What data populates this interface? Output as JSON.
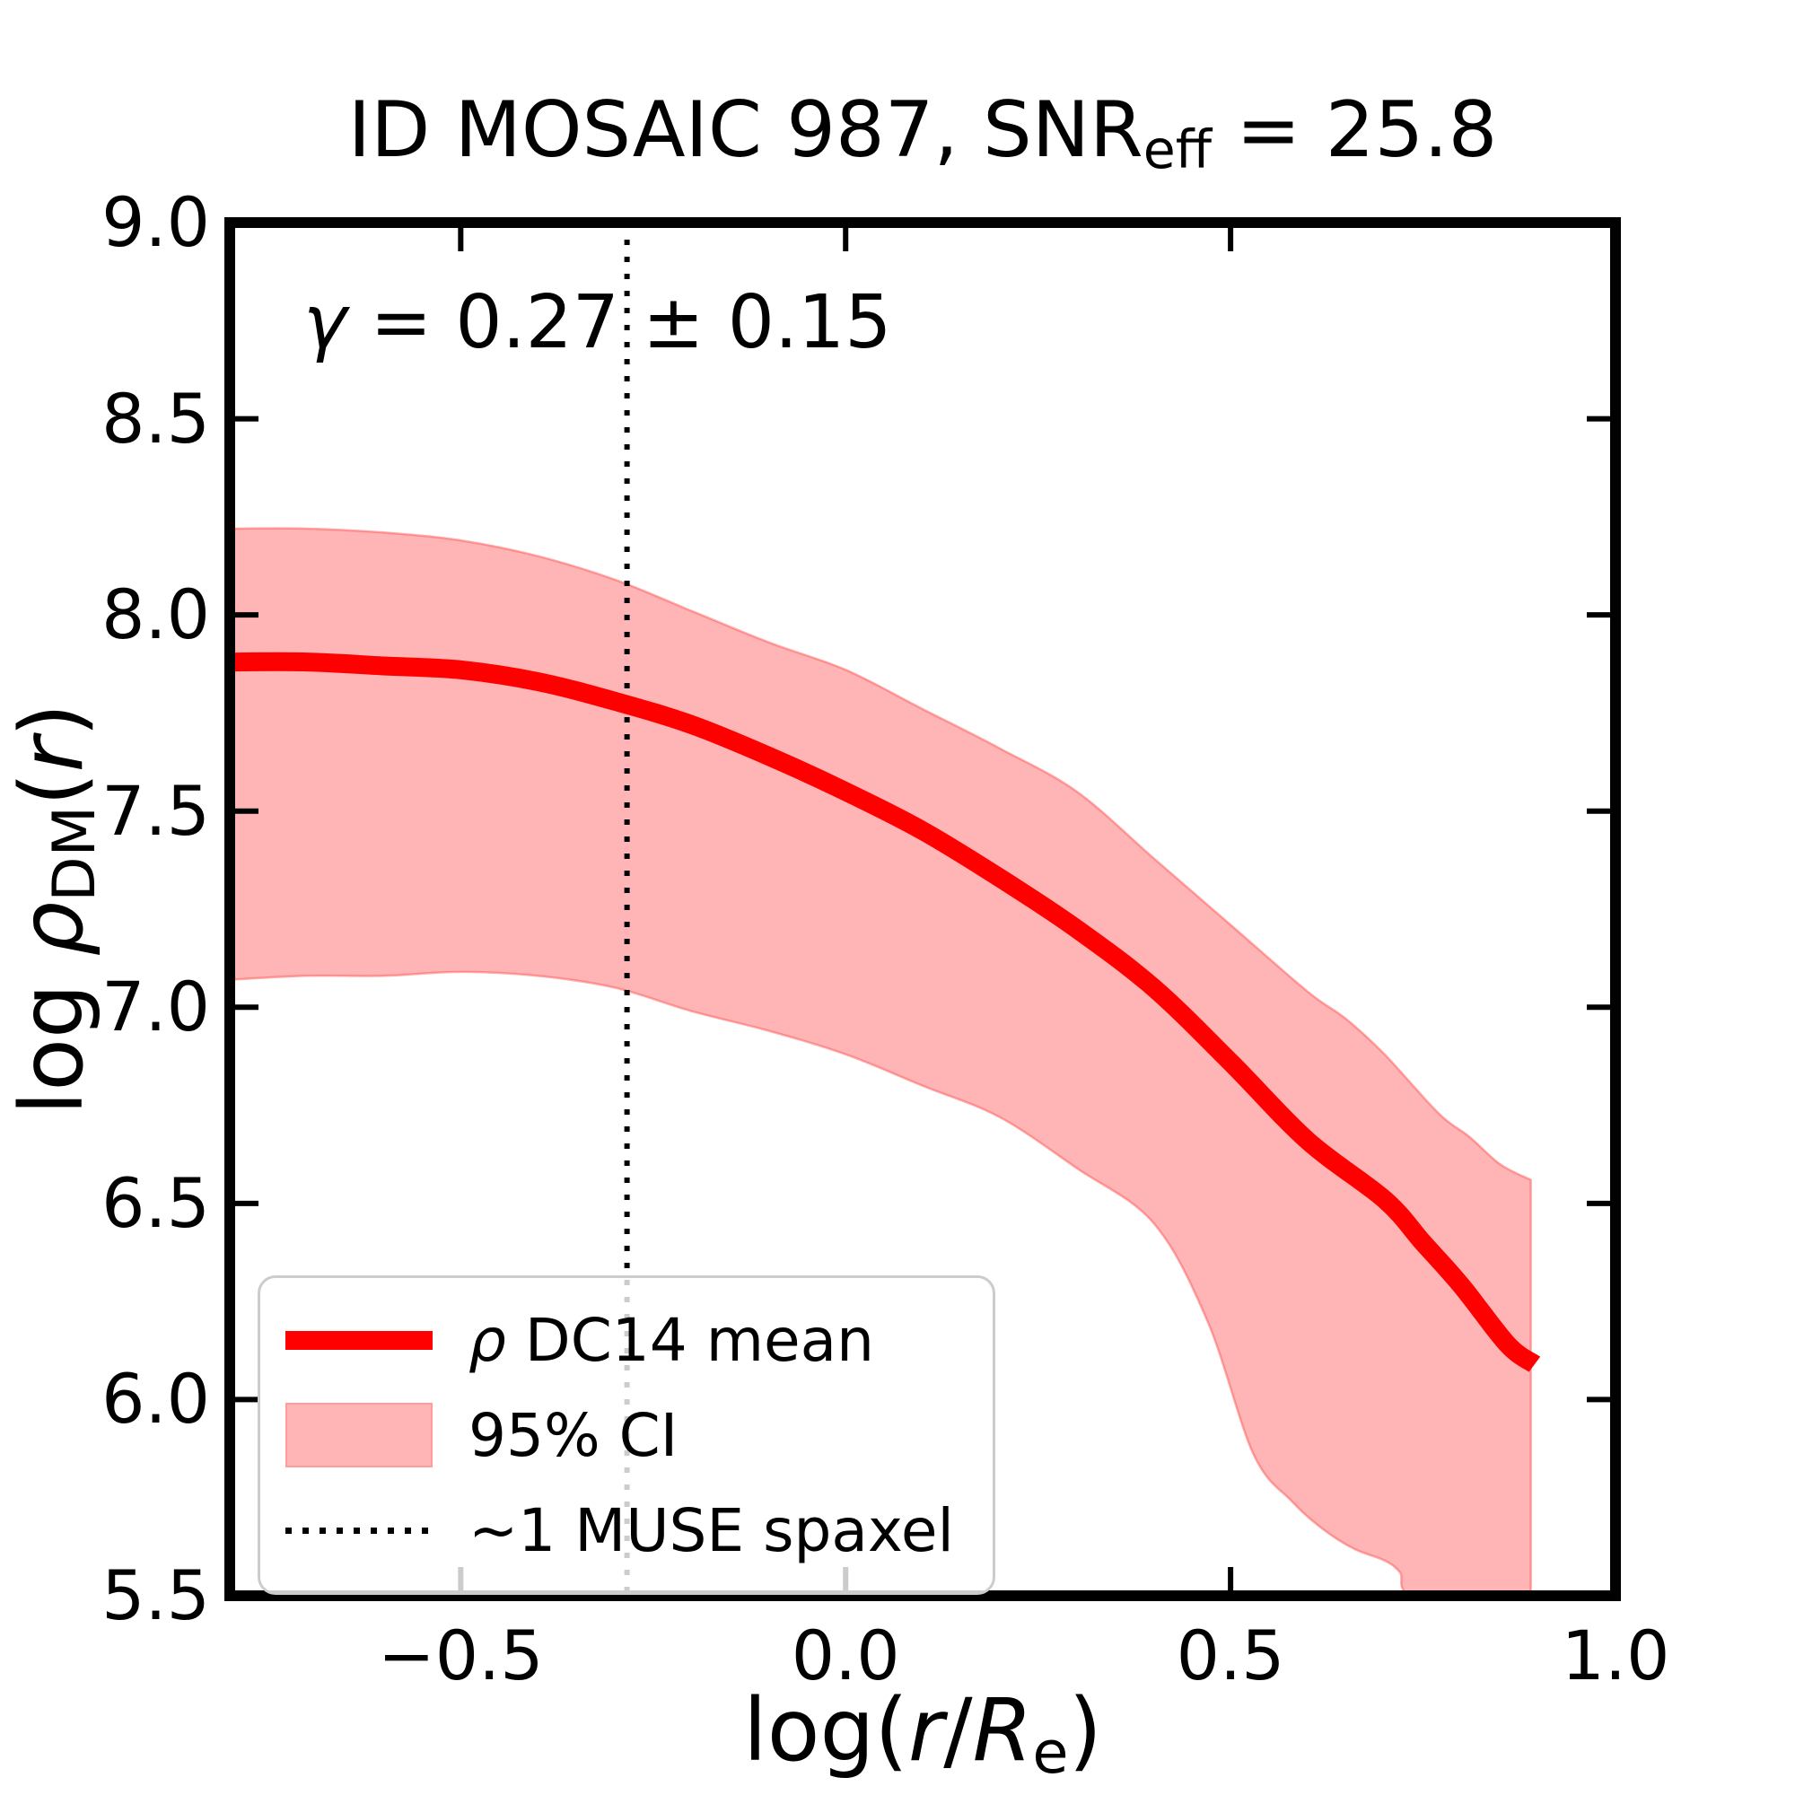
{
  "figure": {
    "background": "#ffffff"
  },
  "title_parts": {
    "pre": "ID MOSAIC 987, SNR",
    "sub": "eff",
    "post": " = 25.8"
  },
  "annotation_parts": {
    "gamma": "γ",
    "rest": " = 0.27 ± 0.15"
  },
  "axis_labels": {
    "xlabel_parts": {
      "log": "log(",
      "r": "r",
      "slash": "/",
      "R": "R",
      "sub": "e",
      "close": ")"
    },
    "ylabel_parts": {
      "log": "log ",
      "rho": "ρ",
      "sub": "DM",
      "open": "(",
      "r": "r",
      "close": ")"
    }
  },
  "legend": {
    "position": "lower left",
    "items": [
      {
        "swatch": "line",
        "label_parts": {
          "sym": "ρ",
          "rest": " DC14 mean"
        }
      },
      {
        "swatch": "band",
        "label": "95% CI"
      },
      {
        "swatch": "dotted",
        "label": "~1 MUSE spaxel"
      }
    ]
  },
  "colors": {
    "mean_line": "#ff0000",
    "band_fill": "rgba(255,0,0,0.29)",
    "band_edge": "rgba(255,70,70,0.45)",
    "vline": "#000000",
    "frame": "#000000",
    "tick": "#000000",
    "legend_border": "#cccccc"
  },
  "chart_data": {
    "type": "line",
    "title": "ID MOSAIC 987, SNR_eff = 25.8",
    "annotation": "γ = 0.27 ± 0.15",
    "xlabel": "log(r/R_e)",
    "ylabel": "log ρ_DM(r)",
    "xlim": [
      -0.8,
      1.0
    ],
    "ylim": [
      5.5,
      9.0
    ],
    "xticks": [
      -0.5,
      0.0,
      0.5,
      1.0
    ],
    "xtick_labels": [
      "−0.5",
      "0.0",
      "0.5",
      "1.0"
    ],
    "yticks": [
      9.0,
      8.5,
      8.0,
      7.5,
      7.0,
      6.5,
      6.0,
      5.5
    ],
    "ytick_labels": [
      "9.0",
      "8.5",
      "8.0",
      "7.5",
      "7.0",
      "6.5",
      "6.0",
      "5.5"
    ],
    "grid": false,
    "legend_position": "lower left",
    "series": [
      {
        "name": "ρ DC14 mean",
        "type": "line",
        "x": [
          -0.8,
          -0.7,
          -0.6,
          -0.5,
          -0.4,
          -0.3,
          -0.2,
          -0.1,
          0.0,
          0.1,
          0.2,
          0.3,
          0.4,
          0.5,
          0.6,
          0.7,
          0.75,
          0.8,
          0.86,
          0.895
        ],
        "y": [
          7.88,
          7.88,
          7.87,
          7.86,
          7.83,
          7.78,
          7.72,
          7.64,
          7.55,
          7.45,
          7.33,
          7.2,
          7.05,
          6.86,
          6.66,
          6.51,
          6.4,
          6.29,
          6.14,
          6.09
        ]
      },
      {
        "name": "95% CI",
        "type": "band",
        "x_upper": [
          -0.8,
          -0.7,
          -0.6,
          -0.5,
          -0.4,
          -0.3,
          -0.2,
          -0.1,
          0.0,
          0.1,
          0.2,
          0.3,
          0.4,
          0.5,
          0.6,
          0.65,
          0.7,
          0.77,
          0.81,
          0.85,
          0.89
        ],
        "y_upper": [
          8.22,
          8.22,
          8.21,
          8.19,
          8.15,
          8.09,
          8.01,
          7.93,
          7.86,
          7.76,
          7.66,
          7.55,
          7.38,
          7.21,
          7.04,
          6.97,
          6.88,
          6.73,
          6.67,
          6.6,
          6.56
        ],
        "x_lower": [
          -0.8,
          -0.7,
          -0.6,
          -0.5,
          -0.4,
          -0.3,
          -0.2,
          -0.1,
          0.0,
          0.1,
          0.2,
          0.3,
          0.4,
          0.47,
          0.53,
          0.58,
          0.62,
          0.66,
          0.7,
          0.72,
          0.74,
          0.89
        ],
        "y_lower": [
          7.07,
          7.08,
          7.08,
          7.09,
          7.08,
          7.05,
          6.99,
          6.94,
          6.88,
          6.8,
          6.72,
          6.59,
          6.45,
          6.2,
          5.86,
          5.74,
          5.67,
          5.62,
          5.59,
          5.56,
          5.5,
          5.5
        ]
      },
      {
        "name": "~1 MUSE spaxel",
        "type": "vline",
        "x": -0.284
      }
    ]
  }
}
